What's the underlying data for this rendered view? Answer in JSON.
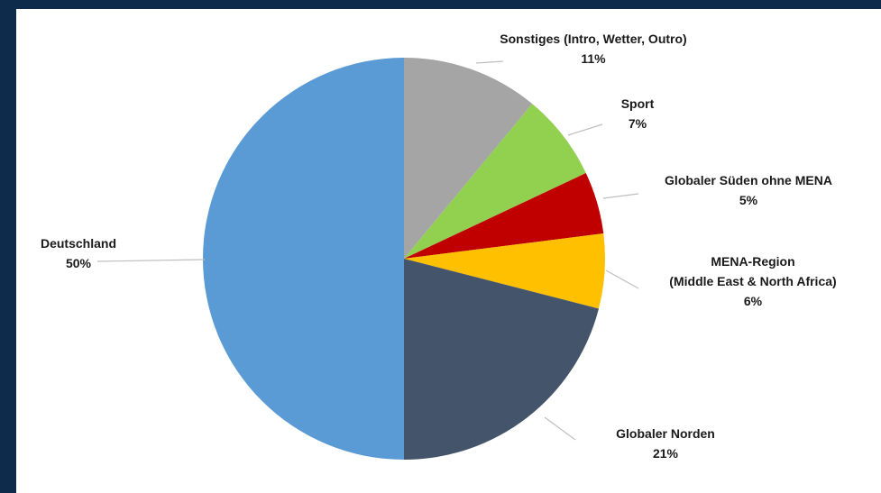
{
  "chart_data": {
    "type": "pie",
    "title": "",
    "slices": [
      {
        "label": [
          "Sonstiges (Intro, Wetter, Outro)"
        ],
        "pct_text": "11%",
        "value": 11,
        "color": "#a5a5a5"
      },
      {
        "label": [
          "Sport"
        ],
        "pct_text": "7%",
        "value": 7,
        "color": "#92d050"
      },
      {
        "label": [
          "Globaler Süden ohne MENA"
        ],
        "pct_text": "5%",
        "value": 5,
        "color": "#c00000"
      },
      {
        "label": [
          "MENA-Region",
          "(Middle East & North Africa)"
        ],
        "pct_text": "6%",
        "value": 6,
        "color": "#ffc000"
      },
      {
        "label": [
          "Globaler Norden"
        ],
        "pct_text": "21%",
        "value": 21,
        "color": "#44546a"
      },
      {
        "label": [
          "Deutschland"
        ],
        "pct_text": "50%",
        "value": 50,
        "color": "#5b9bd5"
      }
    ],
    "start_angle_deg": 0,
    "direction": "clockwise",
    "legend": "none",
    "leader_lines": true
  },
  "colors": {
    "page_background": "#0f2b4c",
    "chart_background": "#ffffff",
    "leader_line": "#bfbfbf"
  }
}
